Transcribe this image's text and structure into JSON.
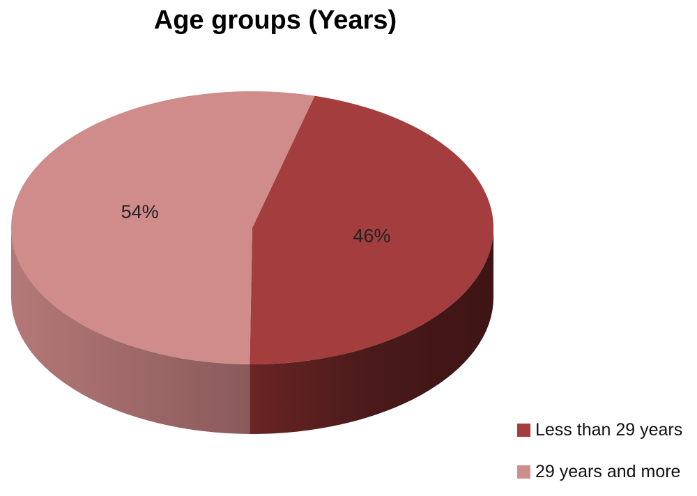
{
  "chart_data": {
    "type": "pie",
    "title": "Age groups (Years)",
    "series": [
      {
        "name": "Less than 29 years",
        "value": 46,
        "label": "46%",
        "color": "#a43d3e",
        "side_color": "#5a1e1e"
      },
      {
        "name": "29 years and more",
        "value": 54,
        "label": "54%",
        "color": "#d08b8b",
        "side_color": "#9a6262"
      }
    ],
    "legend_position": "bottom-right",
    "three_d": true
  }
}
